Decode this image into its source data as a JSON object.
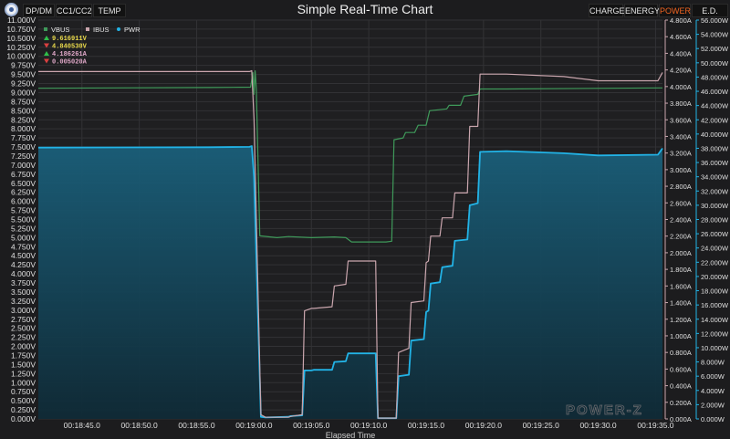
{
  "window": {
    "title": "Simple Real-Time Chart",
    "left_tabs": [
      "DP/DM",
      "CC1/CC2",
      "TEMP"
    ],
    "right_tabs": [
      "CHARGE",
      "ENERGY",
      "POWER",
      "E.D."
    ],
    "active_right_tab": "POWER"
  },
  "watermark": "POWER-Z",
  "colors": {
    "vbus": "#3f9a5a",
    "ibus": "#caa6ae",
    "pwr": "#22b3e6",
    "pwr_fill_top": "#1a5f7a",
    "pwr_fill_bottom": "#0f2a36",
    "background": "#1c1c1e",
    "grid": "#323235",
    "up_arrow": "#2fbf4a",
    "down_arrow": "#d94040"
  },
  "chart_data": {
    "type": "line",
    "xlabel": "Elapsed Time",
    "x_unit": "seconds since 00:00:00",
    "xlim": [
      1121.2,
      1175.6
    ],
    "x_ticks": [
      {
        "v": 1125,
        "label": "00:18:45.0"
      },
      {
        "v": 1130,
        "label": "00:18:50.0"
      },
      {
        "v": 1135,
        "label": "00:18:55.0"
      },
      {
        "v": 1140,
        "label": "00:19:00.0"
      },
      {
        "v": 1145,
        "label": "00:19:05.0"
      },
      {
        "v": 1150,
        "label": "00:19:10.0"
      },
      {
        "v": 1155,
        "label": "00:19:15.0"
      },
      {
        "v": 1160,
        "label": "00:19:20.0"
      },
      {
        "v": 1165,
        "label": "00:19:25.0"
      },
      {
        "v": 1170,
        "label": "00:19:30.0"
      },
      {
        "v": 1175,
        "label": "00:19:35.0"
      }
    ],
    "axes": {
      "left": {
        "unit": "V",
        "min": 0,
        "max": 11,
        "step": 0.25,
        "decimals": 3
      },
      "right_current": {
        "unit": "A",
        "min": 0,
        "max": 4.8,
        "step": 0.2,
        "decimals": 3
      },
      "right_power": {
        "unit": "W",
        "min": 0,
        "max": 56,
        "step": 2,
        "decimals": 3
      }
    },
    "grid": true,
    "legend": {
      "position": "top-left"
    },
    "readouts": [
      {
        "arrow": "up",
        "text": "9.616911V",
        "color": "#e8d84a"
      },
      {
        "arrow": "down",
        "text": "4.840530V",
        "color": "#e8d84a"
      },
      {
        "arrow": "up",
        "text": "4.186261A",
        "color": "#e0a8c8"
      },
      {
        "arrow": "down",
        "text": "0.005020A",
        "color": "#e0a8c8"
      }
    ],
    "series": [
      {
        "name": "VBUS",
        "axis": "left",
        "x": [
          1121.2,
          1136,
          1139.7,
          1139.9,
          1140.0,
          1140.1,
          1140.2,
          1140.5,
          1142,
          1143,
          1145,
          1147,
          1148,
          1148.5,
          1150,
          1151.5,
          1152,
          1152.2,
          1153,
          1153.2,
          1154,
          1154.3,
          1155,
          1155.3,
          1156.8,
          1157,
          1158,
          1158.3,
          1159.5,
          1159.7,
          1162,
          1175.6
        ],
        "y": [
          9.12,
          9.14,
          9.15,
          9.55,
          8.95,
          9.6,
          9.1,
          5.05,
          5.0,
          5.03,
          5.0,
          5.02,
          5.0,
          4.88,
          4.88,
          4.88,
          4.9,
          7.7,
          7.75,
          7.9,
          7.9,
          8.1,
          8.1,
          8.5,
          8.55,
          8.65,
          8.65,
          8.9,
          8.95,
          9.1,
          9.1,
          9.13
        ]
      },
      {
        "name": "IBUS",
        "axis": "right_current",
        "x": [
          1121.2,
          1139.6,
          1139.8,
          1140.0,
          1140.6,
          1141,
          1143,
          1143.2,
          1144.2,
          1144.4,
          1145,
          1145.2,
          1146.8,
          1147,
          1148,
          1148.2,
          1150.6,
          1150.8,
          1152.4,
          1152.6,
          1153.5,
          1153.7,
          1154.8,
          1155,
          1155.2,
          1155.4,
          1156.2,
          1156.4,
          1157.3,
          1157.5,
          1158.6,
          1158.8,
          1159.5,
          1159.7,
          1162,
          1167,
          1170,
          1175.2,
          1175.6
        ],
        "y": [
          4.18,
          4.18,
          4.19,
          3.6,
          0.05,
          0.02,
          0.02,
          0.03,
          0.05,
          1.3,
          1.33,
          1.33,
          1.35,
          1.6,
          1.62,
          1.9,
          1.9,
          0.01,
          0.01,
          0.8,
          0.85,
          1.4,
          1.42,
          1.88,
          1.9,
          2.2,
          2.2,
          2.42,
          2.42,
          2.72,
          2.72,
          3.52,
          3.52,
          4.15,
          4.15,
          4.12,
          4.07,
          4.07,
          4.17
        ]
      },
      {
        "name": "PWR",
        "axis": "right_power",
        "x": [
          1121.2,
          1136,
          1139.6,
          1139.8,
          1140.0,
          1140.6,
          1141,
          1143,
          1143.2,
          1144.2,
          1144.4,
          1145,
          1145.2,
          1146.8,
          1147,
          1148,
          1148.2,
          1150.6,
          1150.8,
          1152.4,
          1152.6,
          1153.5,
          1153.7,
          1154.8,
          1155,
          1155.2,
          1155.4,
          1156.2,
          1156.4,
          1157.3,
          1157.5,
          1158.6,
          1158.8,
          1159.5,
          1159.7,
          1162,
          1167,
          1170,
          1175.2,
          1175.6
        ],
        "y": [
          38.1,
          38.15,
          38.2,
          38.3,
          34.0,
          0.3,
          0.2,
          0.3,
          0.4,
          0.5,
          6.8,
          6.8,
          6.9,
          6.9,
          8.0,
          8.1,
          9.2,
          9.2,
          0.1,
          0.1,
          6.0,
          6.2,
          11.0,
          11.2,
          15.0,
          15.2,
          19.0,
          19.2,
          21.3,
          21.5,
          25.0,
          25.2,
          30.0,
          30.3,
          37.5,
          37.6,
          37.3,
          37.0,
          37.1,
          38.0
        ]
      }
    ]
  }
}
